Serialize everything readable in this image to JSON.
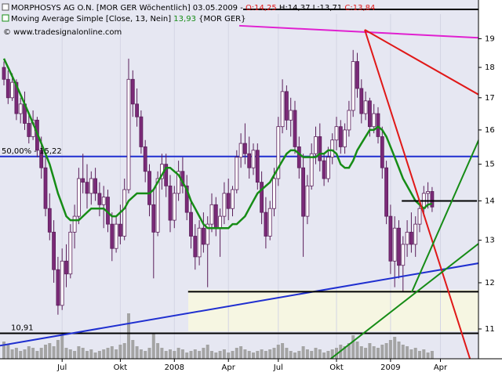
{
  "chart_data": {
    "type": "candlestick",
    "header": {
      "symbol": "MORPHOSYS AG O.N. [MOR GER  Wöchentlich] 03.05.2009 -",
      "open": "O:14,25",
      "high_low": "H:14,37 L:13,71",
      "close": "C:13,84",
      "ma_name": "Moving Average Simple [Close, 13, Nein]",
      "ma_value": "13,93",
      "ma_symbol": "{MOR GER}",
      "copyright": "© www.tradesignalonline.com"
    },
    "log_scale": true,
    "ylim": [
      10.4,
      19.9
    ],
    "yticks": [
      11,
      12,
      13,
      14,
      15,
      16,
      17,
      18,
      19
    ],
    "categories": [
      null,
      null,
      null,
      null,
      null,
      null,
      null,
      null,
      null,
      null,
      null,
      null,
      null,
      null,
      "Jul",
      null,
      null,
      null,
      null,
      null,
      null,
      null,
      null,
      null,
      null,
      null,
      null,
      null,
      "Okt",
      null,
      null,
      null,
      null,
      null,
      null,
      null,
      null,
      null,
      null,
      null,
      null,
      "2008",
      null,
      null,
      null,
      null,
      null,
      null,
      null,
      null,
      null,
      null,
      null,
      null,
      "Apr",
      null,
      null,
      null,
      null,
      null,
      null,
      null,
      null,
      null,
      null,
      null,
      "Jul",
      null,
      null,
      null,
      null,
      null,
      null,
      null,
      null,
      null,
      null,
      null,
      null,
      null,
      "Okt",
      null,
      null,
      null,
      null,
      null,
      null,
      null,
      null,
      null,
      null,
      null,
      null,
      "2009",
      null,
      null,
      null,
      null,
      null,
      null,
      null,
      null,
      null,
      null,
      null,
      "Apr",
      null,
      null,
      null,
      null,
      null,
      null
    ],
    "candle_up_color": "#ffffff",
    "candle_down_color": "#7b2a78",
    "candle_edge_color": "#5a1f5a",
    "ohlc": [
      [
        18.0,
        18.2,
        17.4,
        17.6
      ],
      [
        17.6,
        17.9,
        16.8,
        17.0
      ],
      [
        17.0,
        17.8,
        16.9,
        17.5
      ],
      [
        17.5,
        17.6,
        16.3,
        16.5
      ],
      [
        16.5,
        17.0,
        16.2,
        16.8
      ],
      [
        16.8,
        17.2,
        16.0,
        16.2
      ],
      [
        16.2,
        16.5,
        15.6,
        15.8
      ],
      [
        15.8,
        16.6,
        15.7,
        16.3
      ],
      [
        16.3,
        16.4,
        15.2,
        15.4
      ],
      [
        15.4,
        15.8,
        14.6,
        14.9
      ],
      [
        14.9,
        15.2,
        13.6,
        13.8
      ],
      [
        13.8,
        14.2,
        13.0,
        13.2
      ],
      [
        13.2,
        13.5,
        12.0,
        12.3
      ],
      [
        12.3,
        12.6,
        11.3,
        11.5
      ],
      [
        11.5,
        12.8,
        11.4,
        12.5
      ],
      [
        12.5,
        12.9,
        11.9,
        12.2
      ],
      [
        12.2,
        13.4,
        12.1,
        13.2
      ],
      [
        13.2,
        13.9,
        12.8,
        13.6
      ],
      [
        13.6,
        14.9,
        13.4,
        14.6
      ],
      [
        14.6,
        15.3,
        14.2,
        14.5
      ],
      [
        14.5,
        15.0,
        13.8,
        14.2
      ],
      [
        14.2,
        14.8,
        13.9,
        14.6
      ],
      [
        14.6,
        14.9,
        14.0,
        14.2
      ],
      [
        14.2,
        14.5,
        13.6,
        13.9
      ],
      [
        13.9,
        14.4,
        13.3,
        14.1
      ],
      [
        14.1,
        14.3,
        13.2,
        13.4
      ],
      [
        13.4,
        13.7,
        12.5,
        12.8
      ],
      [
        12.8,
        13.6,
        12.7,
        13.4
      ],
      [
        13.4,
        13.9,
        12.9,
        13.1
      ],
      [
        13.1,
        14.6,
        13.0,
        14.3
      ],
      [
        14.3,
        18.3,
        14.2,
        17.6
      ],
      [
        17.6,
        17.9,
        16.4,
        16.8
      ],
      [
        16.8,
        17.3,
        16.1,
        16.4
      ],
      [
        16.4,
        16.6,
        15.3,
        15.5
      ],
      [
        15.5,
        15.7,
        14.5,
        14.8
      ],
      [
        14.8,
        15.0,
        13.6,
        13.9
      ],
      [
        13.9,
        14.3,
        12.1,
        13.2
      ],
      [
        13.2,
        14.8,
        13.1,
        14.6
      ],
      [
        14.6,
        15.3,
        14.3,
        15.0
      ],
      [
        15.0,
        15.3,
        14.1,
        14.4
      ],
      [
        14.4,
        14.7,
        13.2,
        13.5
      ],
      [
        13.5,
        14.4,
        13.3,
        14.2
      ],
      [
        14.2,
        15.1,
        14.0,
        14.8
      ],
      [
        14.8,
        15.2,
        14.2,
        14.4
      ],
      [
        14.4,
        14.7,
        13.5,
        13.7
      ],
      [
        13.7,
        14.0,
        12.8,
        13.1
      ],
      [
        13.1,
        13.4,
        12.3,
        12.6
      ],
      [
        12.6,
        13.5,
        12.4,
        13.3
      ],
      [
        13.3,
        13.7,
        12.7,
        12.9
      ],
      [
        12.9,
        13.6,
        11.9,
        13.4
      ],
      [
        13.4,
        14.2,
        13.2,
        13.9
      ],
      [
        13.9,
        14.1,
        13.1,
        13.3
      ],
      [
        13.3,
        13.8,
        12.6,
        13.6
      ],
      [
        13.6,
        14.5,
        13.4,
        14.2
      ],
      [
        14.2,
        14.6,
        13.5,
        13.8
      ],
      [
        13.8,
        14.4,
        13.6,
        14.3
      ],
      [
        14.3,
        15.4,
        14.2,
        15.2
      ],
      [
        15.2,
        15.9,
        14.9,
        15.6
      ],
      [
        15.6,
        16.2,
        15.0,
        15.3
      ],
      [
        15.3,
        15.8,
        14.6,
        14.9
      ],
      [
        14.9,
        15.6,
        14.7,
        15.4
      ],
      [
        15.4,
        15.6,
        14.3,
        14.5
      ],
      [
        14.5,
        14.8,
        13.4,
        13.7
      ],
      [
        13.7,
        14.1,
        12.8,
        13.1
      ],
      [
        13.1,
        14.0,
        13.0,
        13.8
      ],
      [
        13.8,
        14.9,
        13.6,
        14.6
      ],
      [
        14.6,
        16.4,
        14.4,
        16.1
      ],
      [
        16.1,
        17.6,
        15.9,
        17.2
      ],
      [
        17.2,
        17.4,
        16.0,
        16.3
      ],
      [
        16.3,
        17.0,
        15.8,
        16.6
      ],
      [
        16.6,
        16.9,
        15.3,
        15.5
      ],
      [
        15.5,
        15.8,
        14.6,
        14.9
      ],
      [
        14.9,
        15.3,
        12.6,
        13.6
      ],
      [
        13.6,
        14.7,
        13.4,
        14.4
      ],
      [
        14.4,
        15.6,
        14.3,
        15.3
      ],
      [
        15.3,
        16.1,
        15.0,
        15.8
      ],
      [
        15.8,
        16.2,
        14.8,
        15.1
      ],
      [
        15.1,
        15.3,
        14.4,
        14.6
      ],
      [
        14.6,
        15.5,
        14.5,
        15.2
      ],
      [
        15.2,
        15.9,
        15.0,
        15.7
      ],
      [
        15.7,
        16.4,
        15.4,
        16.1
      ],
      [
        16.1,
        16.3,
        15.3,
        15.5
      ],
      [
        15.5,
        16.2,
        15.3,
        16.0
      ],
      [
        16.0,
        16.9,
        15.8,
        16.6
      ],
      [
        16.6,
        18.6,
        16.4,
        18.2
      ],
      [
        18.2,
        18.5,
        17.0,
        17.3
      ],
      [
        17.3,
        17.6,
        16.2,
        16.5
      ],
      [
        16.5,
        17.2,
        16.3,
        16.9
      ],
      [
        16.9,
        17.0,
        15.8,
        16.1
      ],
      [
        16.1,
        16.8,
        15.9,
        16.5
      ],
      [
        16.5,
        16.7,
        15.6,
        15.8
      ],
      [
        15.8,
        16.1,
        14.6,
        14.9
      ],
      [
        14.9,
        15.1,
        13.4,
        13.6
      ],
      [
        13.6,
        13.9,
        12.2,
        12.5
      ],
      [
        12.5,
        13.6,
        11.9,
        13.3
      ],
      [
        13.3,
        13.5,
        12.1,
        12.4
      ],
      [
        12.4,
        13.1,
        11.8,
        12.9
      ],
      [
        12.9,
        13.5,
        12.6,
        13.2
      ],
      [
        13.2,
        13.7,
        12.7,
        12.9
      ],
      [
        12.9,
        13.6,
        12.6,
        13.4
      ],
      [
        13.4,
        14.0,
        13.2,
        13.8
      ],
      [
        13.8,
        14.4,
        13.6,
        14.2
      ],
      [
        14.2,
        14.5,
        13.8,
        14.25
      ],
      [
        14.25,
        14.37,
        13.71,
        13.84
      ],
      null,
      null,
      null,
      null,
      null,
      null,
      null,
      null
    ],
    "ma": {
      "color": "#168c16",
      "values": [
        18.3,
        18.0,
        17.7,
        17.4,
        17.1,
        16.8,
        16.5,
        16.2,
        15.9,
        15.6,
        15.3,
        15.0,
        14.6,
        14.2,
        13.9,
        13.6,
        13.5,
        13.5,
        13.5,
        13.6,
        13.7,
        13.8,
        13.8,
        13.8,
        13.8,
        13.7,
        13.6,
        13.6,
        13.7,
        13.8,
        14.0,
        14.1,
        14.2,
        14.2,
        14.2,
        14.2,
        14.3,
        14.5,
        14.7,
        14.9,
        14.9,
        14.8,
        14.7,
        14.5,
        14.3,
        14.0,
        13.8,
        13.6,
        13.4,
        13.3,
        13.3,
        13.3,
        13.3,
        13.3,
        13.3,
        13.4,
        13.4,
        13.5,
        13.6,
        13.8,
        14.0,
        14.2,
        14.3,
        14.4,
        14.5,
        14.7,
        14.9,
        15.1,
        15.3,
        15.4,
        15.4,
        15.3,
        15.2,
        15.2,
        15.2,
        15.2,
        15.3,
        15.3,
        15.4,
        15.4,
        15.3,
        15.0,
        14.9,
        14.9,
        15.1,
        15.4,
        15.6,
        15.8,
        16.0,
        16.0,
        16.1,
        16.0,
        15.8,
        15.5,
        15.2,
        14.9,
        14.6,
        14.4,
        14.2,
        14.0,
        13.9,
        13.8,
        13.9,
        13.93,
        null,
        null,
        null,
        null,
        null,
        null,
        null,
        null
      ]
    },
    "volume": {
      "color": "#a4a4a4",
      "values": [
        22,
        18,
        12,
        14,
        10,
        12,
        16,
        14,
        10,
        14,
        18,
        20,
        16,
        24,
        30,
        14,
        12,
        10,
        16,
        14,
        10,
        12,
        8,
        10,
        12,
        14,
        16,
        12,
        18,
        20,
        58,
        24,
        16,
        12,
        10,
        14,
        32,
        20,
        14,
        10,
        12,
        10,
        14,
        12,
        8,
        10,
        12,
        10,
        14,
        18,
        10,
        8,
        10,
        12,
        8,
        10,
        14,
        16,
        12,
        10,
        8,
        10,
        12,
        10,
        12,
        14,
        18,
        20,
        14,
        10,
        8,
        10,
        16,
        12,
        10,
        14,
        12,
        8,
        10,
        12,
        14,
        18,
        16,
        20,
        30,
        22,
        16,
        14,
        20,
        16,
        14,
        18,
        20,
        24,
        28,
        22,
        18,
        16,
        12,
        14,
        10,
        12,
        8,
        10,
        null,
        null,
        null,
        null,
        null,
        null,
        null,
        null
      ]
    },
    "levels": [
      {
        "value": 15.22,
        "label": "50,00% - 15,22",
        "color": "#1f2fd0"
      },
      {
        "value": 10.91,
        "label": "10,91",
        "color": "#000000"
      }
    ],
    "lines": [
      {
        "color": "#1f2fd0",
        "points": [
          [
            -0.94,
            10.66
          ],
          [
            114.2,
            12.45
          ]
        ]
      },
      {
        "color": "#000000",
        "points": [
          [
            44.3,
            11.8
          ],
          [
            114.2,
            11.8
          ]
        ]
      },
      {
        "color": "#000000",
        "points": [
          [
            95.7,
            14.0
          ],
          [
            113.8,
            14.0
          ]
        ]
      },
      {
        "color": "#e020d0",
        "points": [
          [
            56.6,
            19.47
          ],
          [
            114.2,
            19.03
          ]
        ]
      },
      {
        "color": "#e01818",
        "points": [
          [
            86.8,
            19.32
          ],
          [
            114.2,
            17.1
          ]
        ]
      },
      {
        "color": "#e01818",
        "points": [
          [
            86.8,
            19.32
          ],
          [
            112.3,
            10.35
          ]
        ]
      },
      {
        "color": "#168c16",
        "points": [
          [
            98.1,
            11.79
          ],
          [
            114.2,
            15.7
          ]
        ]
      },
      {
        "color": "#168c16",
        "points": [
          [
            78.3,
            10.38
          ],
          [
            114.2,
            12.92
          ]
        ]
      }
    ]
  }
}
